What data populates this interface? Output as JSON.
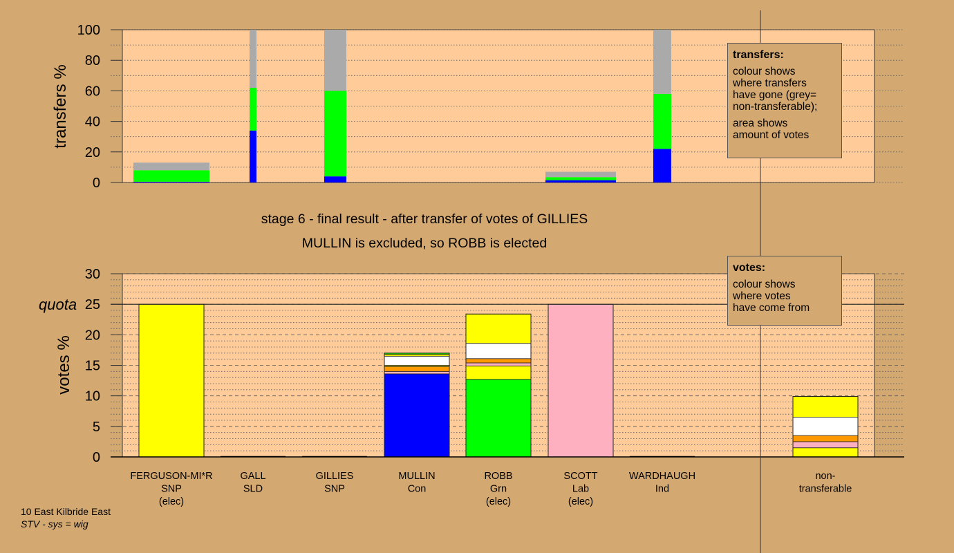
{
  "colors": {
    "background": "#D4A871",
    "plot_background": "#FFCC99",
    "SNP": "#FFFF00",
    "Con": "#0000FF",
    "Grn": "#00FF00",
    "Lab": "#FFB0C0",
    "SLD": "#FF9900",
    "Ind": "#FFFFFF",
    "non_transferable": "#AAAAAA"
  },
  "title": {
    "line1": "stage 6 - final result - after transfer of votes of GILLIES",
    "line2": "MULLIN is excluded, so ROBB is elected"
  },
  "transfers_box": {
    "title": "transfers:",
    "lines_a": [
      "colour shows",
      "where transfers",
      "have gone (grey=",
      "non-transferable);"
    ],
    "lines_b": [
      "area shows",
      "amount of votes"
    ]
  },
  "votes_box": {
    "title": "votes:",
    "lines": [
      "colour shows",
      "where votes",
      "have come from"
    ]
  },
  "footer": {
    "line1": "10 East Kilbride East",
    "line2": "STV - sys = wig"
  },
  "chart_data": [
    {
      "type": "bar",
      "ylabel": "transfers %",
      "ylim": [
        0,
        100
      ],
      "yticks": [
        "0",
        "20",
        "40",
        "60",
        "80",
        "100"
      ],
      "bars": [
        {
          "segments": [
            {
              "party": "Con",
              "value": 0.5
            },
            {
              "party": "Grn",
              "value": 7.5
            },
            {
              "party": "non_transferable",
              "value": 5
            }
          ]
        },
        {
          "segments": [
            {
              "party": "Con",
              "value": 34
            },
            {
              "party": "Grn",
              "value": 28
            },
            {
              "party": "non_transferable",
              "value": 38
            }
          ]
        },
        {
          "segments": [
            {
              "party": "Con",
              "value": 4
            },
            {
              "party": "Grn",
              "value": 56
            },
            {
              "party": "non_transferable",
              "value": 40
            }
          ]
        },
        {
          "segments": []
        },
        {
          "segments": [
            {
              "party": "Con",
              "value": 1.5
            },
            {
              "party": "Grn",
              "value": 2
            },
            {
              "party": "non_transferable",
              "value": 3.5
            }
          ]
        },
        {
          "segments": [
            {
              "party": "Con",
              "value": 22
            },
            {
              "party": "Grn",
              "value": 36
            },
            {
              "party": "non_transferable",
              "value": 42
            }
          ]
        },
        {
          "segments": []
        }
      ]
    },
    {
      "type": "bar",
      "ylabel": "votes %",
      "ylim": [
        0,
        30
      ],
      "yticks": [
        "0",
        "5",
        "10",
        "15",
        "20",
        "25",
        "30"
      ],
      "quota": 25,
      "quota_label": "quota",
      "candidates": [
        {
          "name": "FERGUSON-MI*R",
          "party": "SNP",
          "status": "(elec)",
          "segments": [
            {
              "party": "SNP",
              "value": 25
            }
          ]
        },
        {
          "name": "GALL",
          "party": "SLD",
          "status": "",
          "segments": []
        },
        {
          "name": "GILLIES",
          "party": "SNP",
          "status": "",
          "segments": []
        },
        {
          "name": "MULLIN",
          "party": "Con",
          "status": "",
          "segments": [
            {
              "party": "Con",
              "value": 13.6
            },
            {
              "party": "Lab",
              "value": 0.4
            },
            {
              "party": "SLD",
              "value": 0.8
            },
            {
              "party": "SNP",
              "value": 0.2
            },
            {
              "party": "Ind",
              "value": 1.5
            },
            {
              "party": "SNP",
              "value": 0.3
            },
            {
              "party": "Grn",
              "value": 0.2
            }
          ]
        },
        {
          "name": "ROBB",
          "party": "Grn",
          "status": "(elec)",
          "segments": [
            {
              "party": "Grn",
              "value": 12.7
            },
            {
              "party": "SNP",
              "value": 2.2
            },
            {
              "party": "Lab",
              "value": 0.5
            },
            {
              "party": "SLD",
              "value": 0.7
            },
            {
              "party": "Ind",
              "value": 2.5
            },
            {
              "party": "SNP",
              "value": 4.8
            }
          ]
        },
        {
          "name": "SCOTT",
          "party": "Lab",
          "status": "(elec)",
          "segments": [
            {
              "party": "Lab",
              "value": 25
            }
          ]
        },
        {
          "name": "WARDHAUGH",
          "party": "Ind",
          "status": "",
          "segments": []
        }
      ],
      "non_transferable": {
        "label_line1": "non-",
        "label_line2": "transferable",
        "segments": [
          {
            "party": "SNP",
            "value": 1.5
          },
          {
            "party": "Lab",
            "value": 1
          },
          {
            "party": "SLD",
            "value": 1
          },
          {
            "party": "Ind",
            "value": 3
          },
          {
            "party": "SNP",
            "value": 3.4
          }
        ]
      }
    }
  ]
}
